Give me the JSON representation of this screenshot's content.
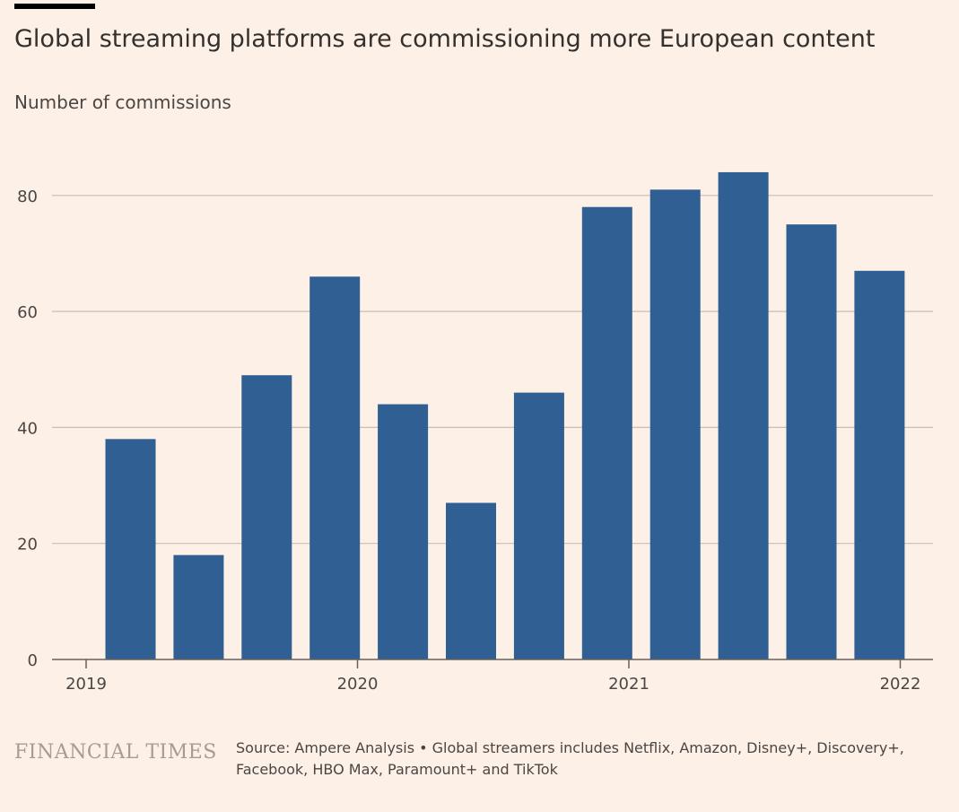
{
  "header": {
    "title": "Global streaming platforms are commissioning more European content",
    "subtitle": "Number of commissions"
  },
  "chart_data": {
    "type": "bar",
    "title": "Global streaming platforms are commissioning more European content",
    "ylabel": "Number of commissions",
    "xlabel": "",
    "x_tick_labels": [
      "2019",
      "2020",
      "2021",
      "2022"
    ],
    "y_ticks": [
      0,
      20,
      40,
      60,
      80
    ],
    "ylim": [
      0,
      85
    ],
    "grid": true,
    "series": [
      {
        "values": [
          38,
          18,
          49,
          66,
          44,
          27,
          46,
          78,
          81,
          84,
          75,
          67
        ]
      }
    ],
    "bar_color": "#2f5f93"
  },
  "footer": {
    "brand": "FINANCIAL TIMES",
    "source_line_1": "Source: Ampere Analysis • Global streamers includes Netflix, Amazon, Disney+, Discovery+,",
    "source_line_2": "Facebook, HBO Max, Paramount+ and TikTok"
  },
  "colors": {
    "background": "#fdf0e6",
    "bar": "#2f5f93",
    "gridline": "#c9bdb4",
    "axis": "#66605c",
    "brand": "#a89c92"
  }
}
